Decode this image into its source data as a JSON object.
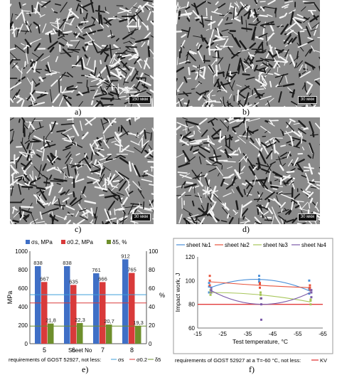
{
  "panels": {
    "a": {
      "label": "a)",
      "scale": "150 мкм"
    },
    "b": {
      "label": "b)",
      "scale": "30 мкм"
    },
    "c": {
      "label": "c)",
      "scale": "30 мкм"
    },
    "d": {
      "label": "d)",
      "scale": "30 мкм"
    },
    "e": {
      "label": "e)"
    },
    "f": {
      "label": "f)"
    }
  },
  "chart_data": [
    {
      "type": "bar",
      "panel": "e",
      "legend": [
        "σs, MPa",
        "σ0.2, MPa",
        "δ5, %"
      ],
      "colors": [
        "#3f6fc6",
        "#d93a3a",
        "#6e8f2c"
      ],
      "categories": [
        "5",
        "6",
        "7",
        "8"
      ],
      "xlabel": "Sheet No",
      "ylabel": "MPa",
      "ylabel_right": "%",
      "ylim": [
        0,
        1000
      ],
      "yticks": [
        "0",
        "200",
        "400",
        "600",
        "800",
        "1000"
      ],
      "ylim_right": [
        0,
        100
      ],
      "yticks_right": [
        "0",
        "20",
        "40",
        "60",
        "80",
        "100"
      ],
      "series": [
        {
          "name": "σs, MPa",
          "values": [
            838,
            838,
            761,
            912
          ],
          "labels": [
            "838",
            "838",
            "761",
            "912"
          ],
          "axis": "left"
        },
        {
          "name": "σ0.2, MPa",
          "values": [
            667,
            635,
            666,
            765
          ],
          "labels": [
            "667",
            "635",
            "666",
            "765"
          ],
          "axis": "left"
        },
        {
          "name": "δ5, %",
          "values": [
            21.8,
            22.3,
            20.7,
            19.3
          ],
          "labels": [
            "21,8",
            "22,3",
            "20,7",
            "19,3"
          ],
          "axis": "right"
        }
      ],
      "requirements": {
        "sigma_s": 530,
        "sigma_02": 440,
        "delta5": 19
      },
      "requirements_text": "requirements of GOST 52927, not less:",
      "requirements_legend": [
        "σs",
        "σ0.2",
        "δ5"
      ]
    },
    {
      "type": "line",
      "panel": "f",
      "legend": [
        "sheet №1",
        "sheet №2",
        "sheet №3",
        "sheet №4"
      ],
      "colors": [
        "#4a90d9",
        "#e8533c",
        "#a7c65a",
        "#7a5aa8"
      ],
      "x": [
        -20,
        -40,
        -60
      ],
      "xlim": [
        -15,
        -65
      ],
      "xticks": [
        "-15",
        "-25",
        "-35",
        "-45",
        "-55",
        "-65"
      ],
      "ylim": [
        60,
        120
      ],
      "yticks": [
        "60",
        "80",
        "100",
        "120"
      ],
      "xlabel": "Test temperature, °C",
      "ylabel": "Impact work, J",
      "series": [
        {
          "name": "sheet №1",
          "values": [
            94,
            101,
            91
          ]
        },
        {
          "name": "sheet №2",
          "values": [
            99,
            96,
            94
          ]
        },
        {
          "name": "sheet №3",
          "values": [
            90,
            88,
            82
          ]
        },
        {
          "name": "sheet №4",
          "values": [
            92,
            80,
            90
          ]
        }
      ],
      "scatter": {
        "sheet №1": [
          [
            -20,
            98
          ],
          [
            -20,
            90
          ],
          [
            -20,
            95
          ],
          [
            -40,
            104
          ],
          [
            -40,
            99
          ],
          [
            -40,
            101
          ],
          [
            -60,
            93
          ],
          [
            -60,
            89
          ],
          [
            -60,
            100
          ]
        ],
        "sheet №2": [
          [
            -20,
            104
          ],
          [
            -20,
            96
          ],
          [
            -20,
            100
          ],
          [
            -40,
            98
          ],
          [
            -40,
            94
          ],
          [
            -40,
            97
          ],
          [
            -60,
            96
          ],
          [
            -60,
            92
          ],
          [
            -60,
            94
          ]
        ],
        "sheet №3": [
          [
            -20,
            92
          ],
          [
            -20,
            88
          ],
          [
            -20,
            90
          ],
          [
            -40,
            90
          ],
          [
            -40,
            85
          ],
          [
            -40,
            88
          ],
          [
            -60,
            84
          ],
          [
            -60,
            80
          ],
          [
            -60,
            83
          ]
        ],
        "sheet №4": [
          [
            -20,
            94
          ],
          [
            -20,
            90
          ],
          [
            -20,
            92
          ],
          [
            -40,
            85
          ],
          [
            -40,
            67
          ],
          [
            -40,
            80
          ],
          [
            -60,
            92
          ],
          [
            -60,
            86
          ],
          [
            -60,
            90
          ]
        ]
      },
      "requirement": 80,
      "requirements_text": "requirements of GOST 52927 at a T=-60 °C,  not less:",
      "requirements_legend": "KV"
    }
  ]
}
